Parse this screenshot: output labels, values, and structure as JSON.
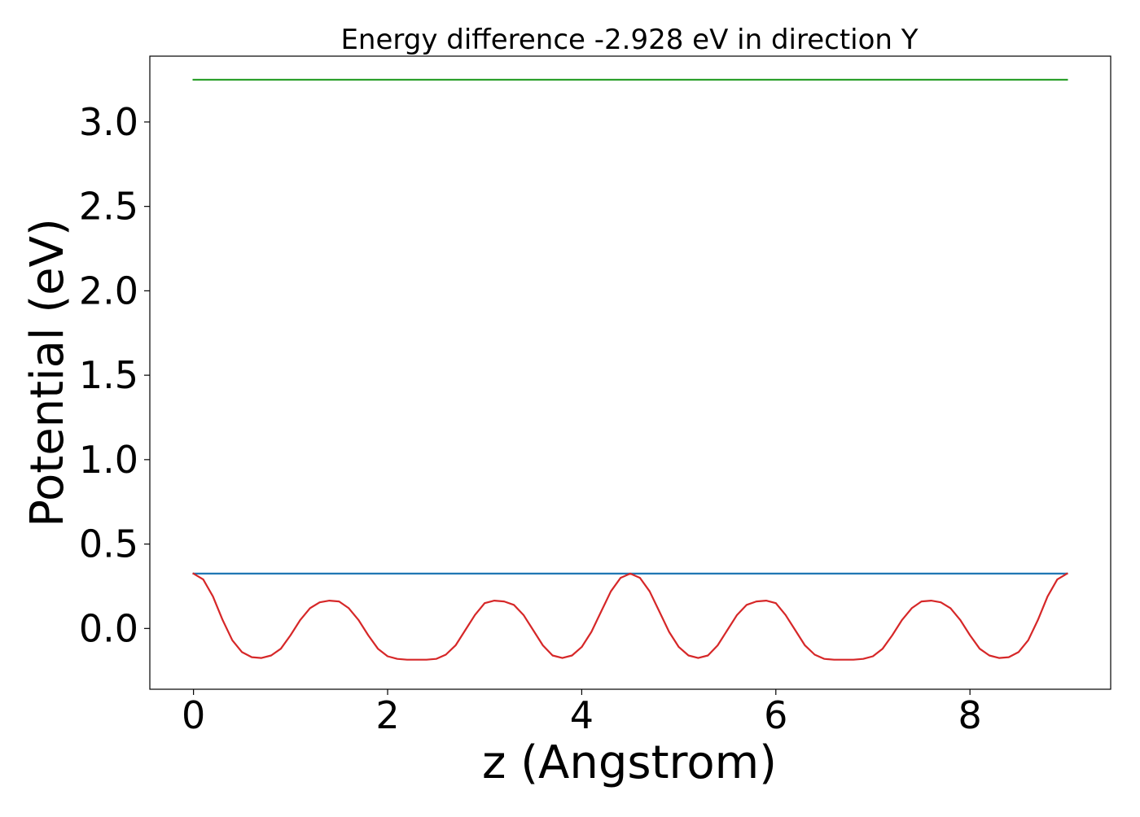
{
  "chart_data": {
    "type": "line",
    "title": "Energy difference -2.928 eV in direction Y",
    "xlabel": "z (Angstrom)",
    "ylabel": "Potential (eV)",
    "xlim": [
      -0.45,
      9.45
    ],
    "ylim": [
      -0.36,
      3.39
    ],
    "xticks": [
      0,
      2,
      4,
      6,
      8
    ],
    "xtick_labels": [
      "0",
      "2",
      "4",
      "6",
      "8"
    ],
    "yticks": [
      0.0,
      0.5,
      1.0,
      1.5,
      2.0,
      2.5,
      3.0
    ],
    "ytick_labels": [
      "0.0",
      "0.5",
      "1.0",
      "1.5",
      "2.0",
      "2.5",
      "3.0"
    ],
    "grid": false,
    "legend": "none",
    "series": [
      {
        "color": "#2ca02c",
        "x": [
          0,
          9
        ],
        "y": [
          3.25,
          3.25
        ]
      },
      {
        "color": "#1f77b4",
        "x": [
          0,
          9
        ],
        "y": [
          0.325,
          0.325
        ]
      },
      {
        "color": "#d62728",
        "x": [
          0,
          0.1,
          0.2,
          0.3,
          0.4,
          0.5,
          0.6,
          0.7,
          0.8,
          0.9,
          1.0,
          1.1,
          1.2,
          1.3,
          1.4,
          1.5,
          1.6,
          1.7,
          1.8,
          1.9,
          2.0,
          2.1,
          2.2,
          2.3,
          2.4,
          2.5,
          2.6,
          2.7,
          2.8,
          2.9,
          3.0,
          3.1,
          3.2,
          3.3,
          3.4,
          3.5,
          3.6,
          3.7,
          3.8,
          3.9,
          4.0,
          4.1,
          4.2,
          4.3,
          4.4,
          4.5,
          4.6,
          4.7,
          4.8,
          4.9,
          5.0,
          5.1,
          5.2,
          5.3,
          5.4,
          5.5,
          5.6,
          5.7,
          5.8,
          5.9,
          6.0,
          6.1,
          6.2,
          6.3,
          6.4,
          6.5,
          6.6,
          6.7,
          6.8,
          6.9,
          7.0,
          7.1,
          7.2,
          7.3,
          7.4,
          7.5,
          7.6,
          7.7,
          7.8,
          7.9,
          8.0,
          8.1,
          8.2,
          8.3,
          8.4,
          8.5,
          8.6,
          8.7,
          8.8,
          8.9,
          9.0
        ],
        "y": [
          0.325,
          0.29,
          0.19,
          0.05,
          -0.07,
          -0.14,
          -0.17,
          -0.175,
          -0.16,
          -0.12,
          -0.04,
          0.05,
          0.12,
          0.155,
          0.165,
          0.16,
          0.12,
          0.05,
          -0.04,
          -0.12,
          -0.165,
          -0.18,
          -0.185,
          -0.185,
          -0.185,
          -0.18,
          -0.155,
          -0.1,
          -0.01,
          0.08,
          0.15,
          0.165,
          0.16,
          0.14,
          0.08,
          -0.01,
          -0.1,
          -0.16,
          -0.175,
          -0.16,
          -0.11,
          -0.02,
          0.1,
          0.22,
          0.3,
          0.325,
          0.3,
          0.22,
          0.1,
          -0.02,
          -0.11,
          -0.16,
          -0.175,
          -0.16,
          -0.1,
          -0.01,
          0.08,
          0.14,
          0.16,
          0.165,
          0.15,
          0.08,
          -0.01,
          -0.1,
          -0.155,
          -0.18,
          -0.185,
          -0.185,
          -0.185,
          -0.18,
          -0.165,
          -0.12,
          -0.04,
          0.05,
          0.12,
          0.16,
          0.165,
          0.155,
          0.12,
          0.05,
          -0.04,
          -0.12,
          -0.16,
          -0.175,
          -0.17,
          -0.14,
          -0.07,
          0.05,
          0.19,
          0.29,
          0.325
        ]
      }
    ]
  }
}
